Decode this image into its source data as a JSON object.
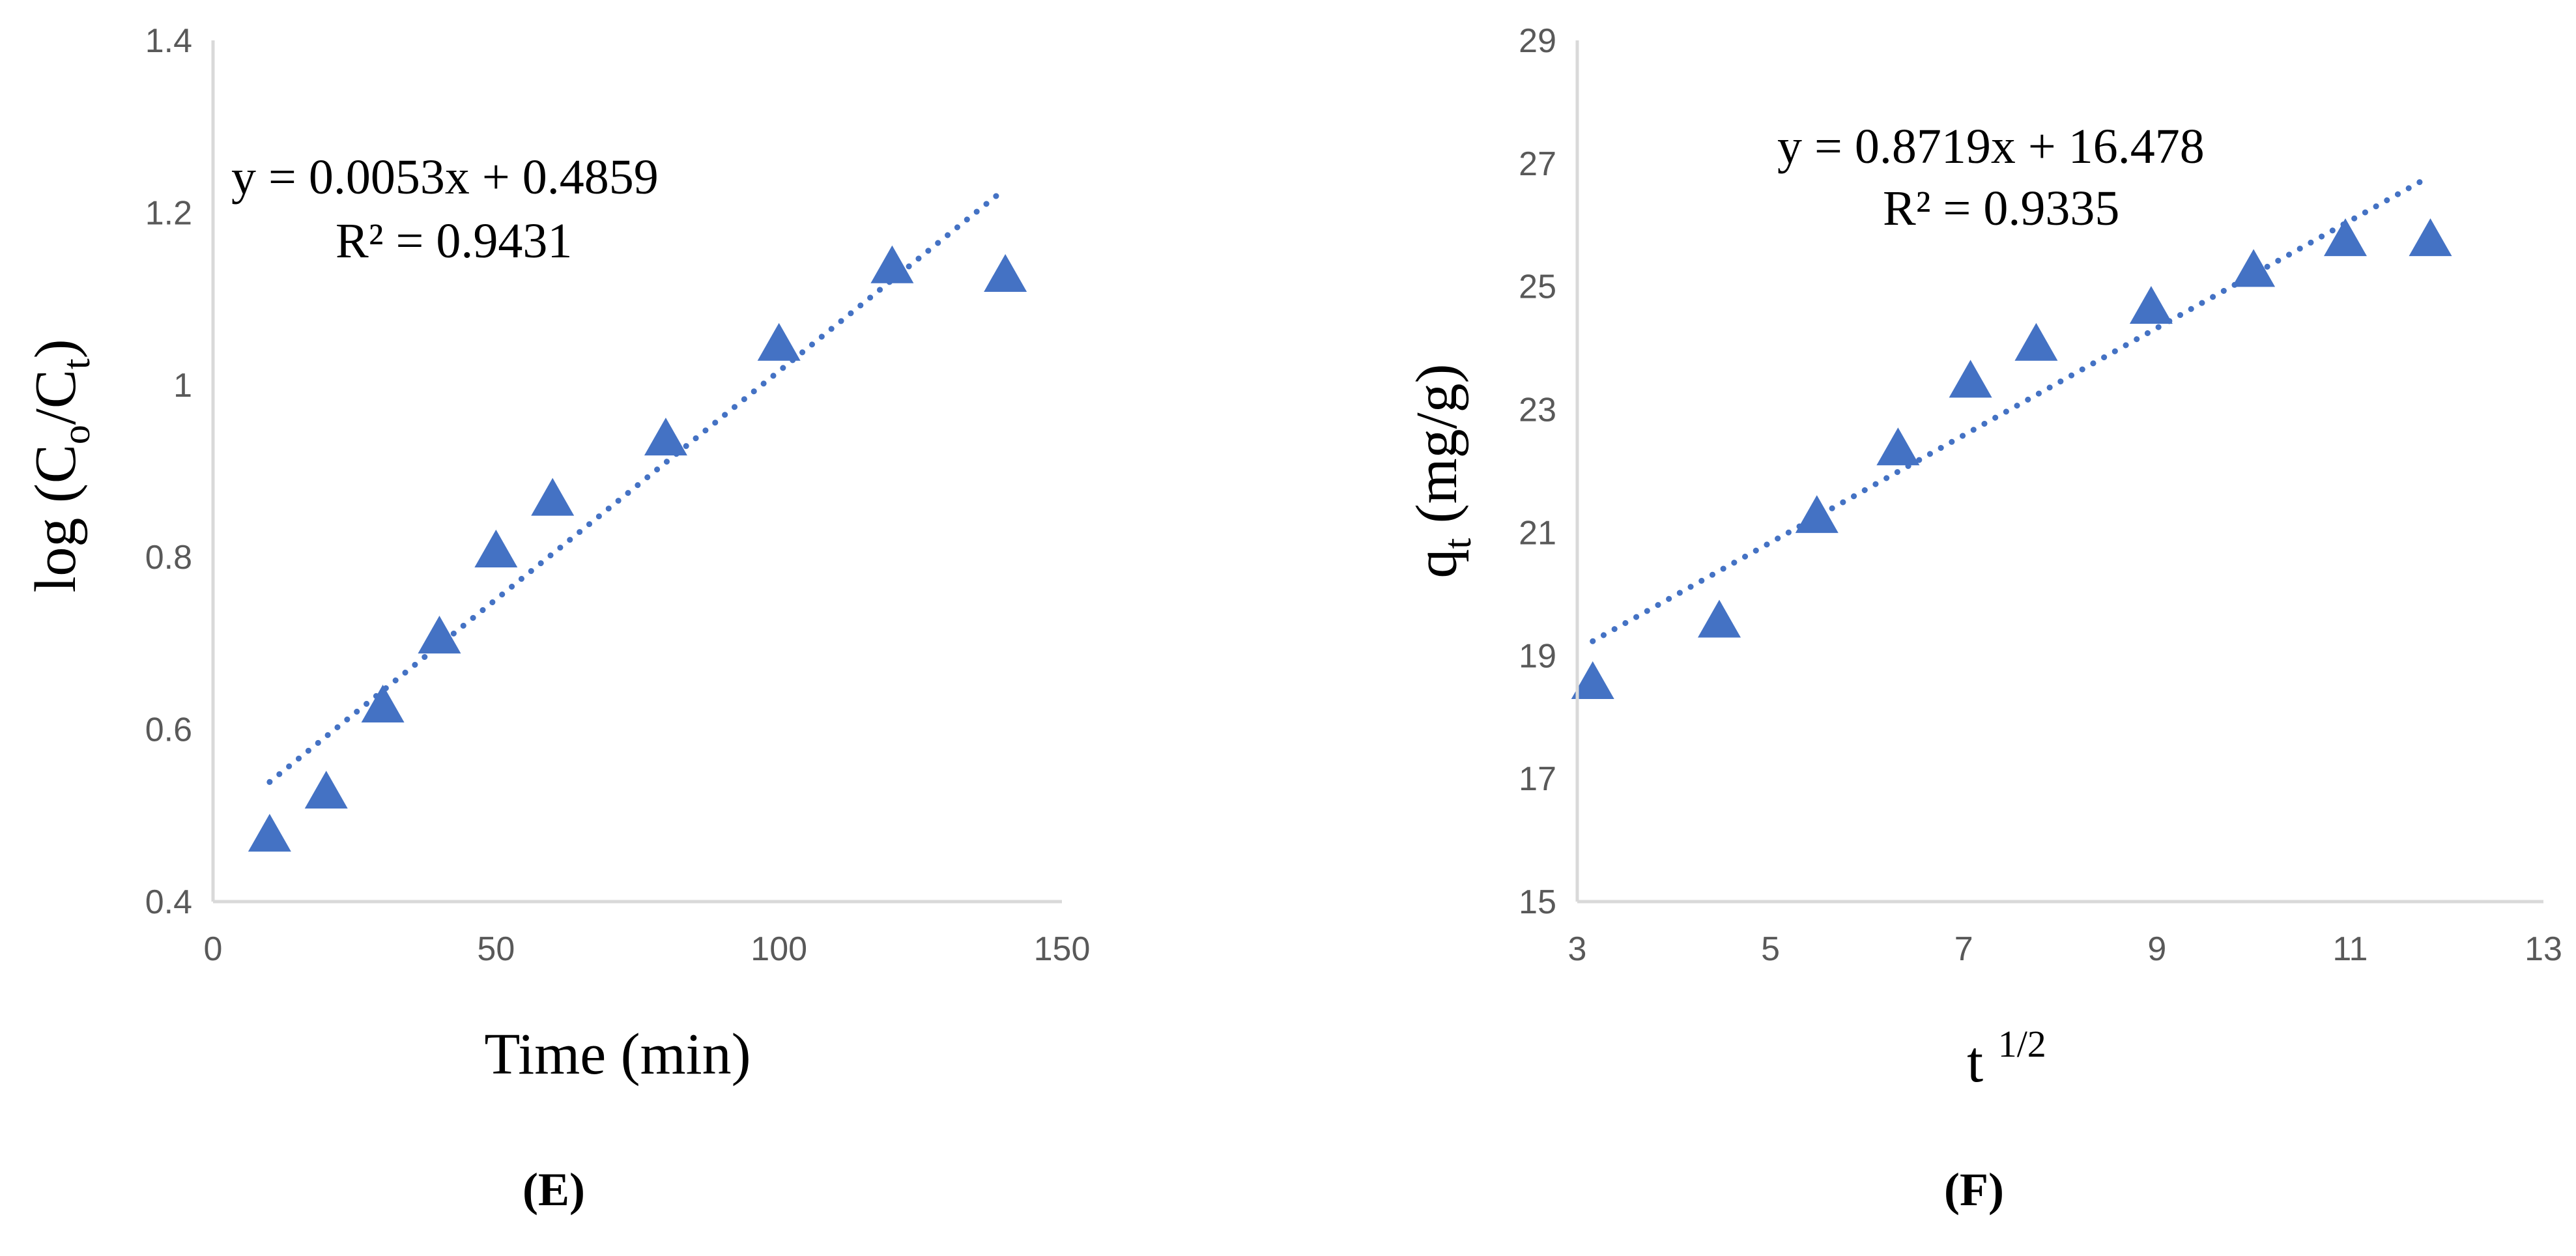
{
  "chart_data": [
    {
      "type": "scatter",
      "panel_label": "E",
      "title": "",
      "xlabel": "Time (min)",
      "ylabel": {
        "base": "log (C",
        "sub1": "o",
        "mid": "/C",
        "sub2": "t",
        "end": ")"
      },
      "xlim": [
        0,
        150
      ],
      "ylim": [
        0.4,
        1.4
      ],
      "xticks": [
        "0",
        "50",
        "100",
        "150"
      ],
      "yticks": [
        "0.4",
        "0.6",
        "0.8",
        "1",
        "1.2",
        "1.4"
      ],
      "series": [
        {
          "marker": "triangle",
          "color": "#4472C4",
          "points": [
            {
              "x": 10,
              "y": 0.48
            },
            {
              "x": 20,
              "y": 0.53
            },
            {
              "x": 30,
              "y": 0.63
            },
            {
              "x": 40,
              "y": 0.71
            },
            {
              "x": 50,
              "y": 0.81
            },
            {
              "x": 60,
              "y": 0.87
            },
            {
              "x": 80,
              "y": 0.94
            },
            {
              "x": 100,
              "y": 1.05
            },
            {
              "x": 120,
              "y": 1.14
            },
            {
              "x": 140,
              "y": 1.13
            }
          ]
        }
      ],
      "trendline": {
        "slope": 0.0053,
        "intercept": 0.4859,
        "x_start": 10,
        "x_end": 140,
        "style": "dotted",
        "color": "#4472C4"
      },
      "equation": "y = 0.0053x + 0.4859",
      "r_squared": "R² = 0.9431",
      "grid": false
    },
    {
      "type": "scatter",
      "panel_label": "F",
      "title": "",
      "xlabel": {
        "base": "t ",
        "sup": "1/2"
      },
      "ylabel": {
        "base": "q",
        "sub": "t",
        "end": " (mg/g)"
      },
      "xlim": [
        3,
        13
      ],
      "ylim": [
        15,
        29
      ],
      "xticks": [
        "3",
        "5",
        "7",
        "9",
        "11",
        "13"
      ],
      "yticks": [
        "15",
        "17",
        "19",
        "21",
        "23",
        "25",
        "27",
        "29"
      ],
      "series": [
        {
          "marker": "triangle",
          "color": "#4472C4",
          "points": [
            {
              "x": 3.16,
              "y": 18.6
            },
            {
              "x": 4.47,
              "y": 19.6
            },
            {
              "x": 5.48,
              "y": 21.3
            },
            {
              "x": 6.32,
              "y": 22.4
            },
            {
              "x": 7.07,
              "y": 23.5
            },
            {
              "x": 7.75,
              "y": 24.1
            },
            {
              "x": 8.94,
              "y": 24.7
            },
            {
              "x": 10.0,
              "y": 25.3
            },
            {
              "x": 10.95,
              "y": 25.8
            },
            {
              "x": 11.83,
              "y": 25.8
            }
          ]
        }
      ],
      "trendline": {
        "slope": 0.8719,
        "intercept": 16.478,
        "x_start": 3.16,
        "x_end": 11.83,
        "style": "dotted",
        "color": "#4472C4"
      },
      "equation": "y = 0.8719x + 16.478",
      "r_squared": "R² = 0.9335",
      "grid": false
    }
  ]
}
